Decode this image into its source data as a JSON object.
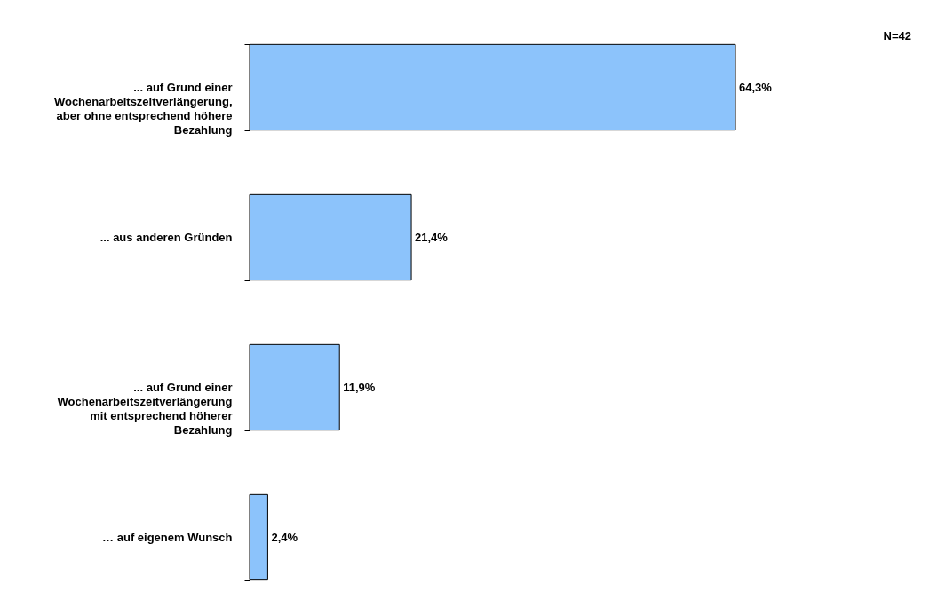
{
  "chart_data": {
    "type": "bar",
    "orientation": "horizontal",
    "categories": [
      "... auf Grund einer Wochenarbeitszeitverlängerung, aber ohne entsprechend höhere Bezahlung",
      "... aus anderen Gründen",
      "... auf Grund einer Wochenarbeitszeitverlängerung mit entsprechend höherer Bezahlung",
      "… auf eigenem Wunsch"
    ],
    "values": [
      64.3,
      21.4,
      11.9,
      2.4
    ],
    "value_labels": [
      "64,3%",
      "21,4%",
      "11,9%",
      "2,4%"
    ],
    "color": "#8cc3fb",
    "annotations": [
      "N=42"
    ]
  }
}
